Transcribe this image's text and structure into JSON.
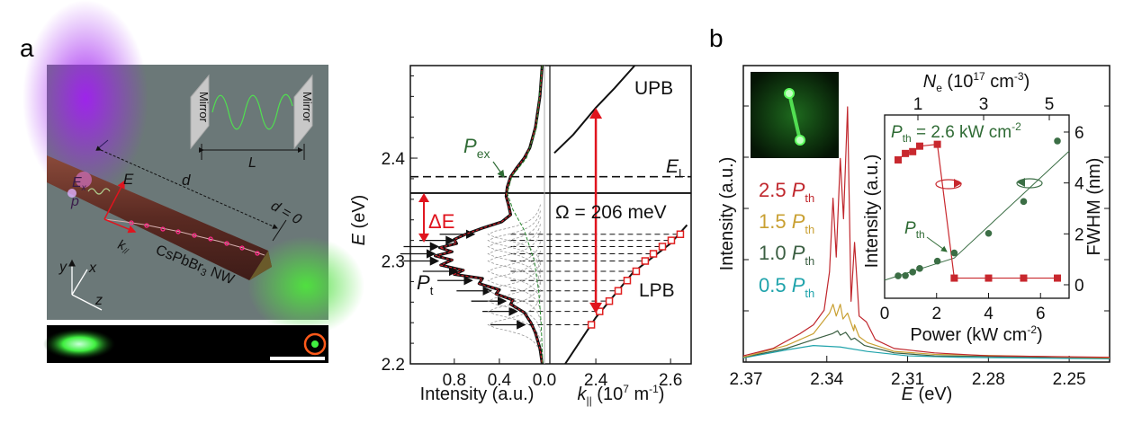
{
  "panel_labels": {
    "a": "a",
    "b": "b"
  },
  "colors": {
    "red": "#d0202a",
    "green_text": "#2f6b35",
    "lpb_points": "#e02020",
    "s25": "#c0272d",
    "s15": "#c9a032",
    "s10": "#3b5f42",
    "s05": "#1fa3ab",
    "fwhm": "#3b6e45",
    "intensity": "#c8282e"
  },
  "schematic": {
    "mirror_left": "Mirror",
    "mirror_right": "Mirror",
    "L": "L",
    "d": "d",
    "d0": "d = 0",
    "E": "E",
    "Ex": "E",
    "Ex_sub": "x",
    "p": "p",
    "k": "k",
    "k_sub": "//",
    "nw": "CsPbBr",
    "nw_sub": "3",
    "nw_suffix": " NW",
    "axes": {
      "x": "x",
      "y": "y",
      "z": "z"
    }
  },
  "chart_data": [
    {
      "type": "line",
      "ylabel": "E",
      "ylabel_unit": " (eV)",
      "ylim": [
        2.2,
        2.49
      ],
      "y_ticks": [
        "2.2",
        "2.3",
        "2.4"
      ],
      "left": {
        "xlabel": "Intensity (a.u.)",
        "xlim": [
          1.19,
          0
        ],
        "x_ticks": [
          "0.8",
          "0.4",
          "0.0"
        ],
        "spectrum": [
          [
            2.49,
            0.02
          ],
          [
            2.46,
            0.04
          ],
          [
            2.43,
            0.08
          ],
          [
            2.41,
            0.13
          ],
          [
            2.4,
            0.18
          ],
          [
            2.39,
            0.25
          ],
          [
            2.382,
            0.3
          ],
          [
            2.372,
            0.33
          ],
          [
            2.363,
            0.34
          ],
          [
            2.355,
            0.32
          ],
          [
            2.345,
            0.3
          ],
          [
            2.338,
            0.38
          ],
          [
            2.332,
            0.55
          ],
          [
            2.326,
            0.7
          ],
          [
            2.321,
            0.8
          ],
          [
            2.317,
            0.78
          ],
          [
            2.313,
            0.93
          ],
          [
            2.309,
            0.82
          ],
          [
            2.305,
            0.97
          ],
          [
            2.301,
            0.82
          ],
          [
            2.296,
            0.92
          ],
          [
            2.291,
            0.72
          ],
          [
            2.287,
            0.8
          ],
          [
            2.283,
            0.55
          ],
          [
            2.278,
            0.58
          ],
          [
            2.272,
            0.4
          ],
          [
            2.268,
            0.43
          ],
          [
            2.262,
            0.28
          ],
          [
            2.258,
            0.3
          ],
          [
            2.25,
            0.18
          ],
          [
            2.24,
            0.12
          ],
          [
            2.23,
            0.08
          ],
          [
            2.215,
            0.04
          ],
          [
            2.2,
            0.02
          ]
        ],
        "p_ex_fit": [
          [
            2.49,
            0.02
          ],
          [
            2.43,
            0.07
          ],
          [
            2.4,
            0.16
          ],
          [
            2.382,
            0.29
          ],
          [
            2.366,
            0.33
          ],
          [
            2.35,
            0.28
          ],
          [
            2.33,
            0.18
          ],
          [
            2.3,
            0.09
          ],
          [
            2.27,
            0.05
          ],
          [
            2.24,
            0.03
          ],
          [
            2.2,
            0.015
          ]
        ],
        "mode_arrow_tips": [
          0.15,
          0.22,
          0.32,
          0.45,
          0.62,
          0.75,
          0.92,
          0.95,
          0.92,
          0.78,
          0.6
        ],
        "labels": {
          "p_ex": "P",
          "p_ex_sub": "ex",
          "p_t": "P",
          "p_t_sub": "t",
          "delta_e": "ΔE"
        }
      },
      "right": {
        "xlabel": "k",
        "xlabel_sub": "||",
        "xlabel_unit": " (10",
        "xlabel_exp": "7",
        "xlabel_unit2": " m",
        "xlabel_exp2": "-1",
        "xlabel_close": ")",
        "xlim": [
          2.277,
          2.655
        ],
        "x_ticks": [
          "2.4",
          "2.6"
        ],
        "lpb": [
          [
            2.318,
            2.2
          ],
          [
            2.4,
            2.245
          ],
          [
            2.5,
            2.289
          ],
          [
            2.6,
            2.317
          ],
          [
            2.644,
            2.335
          ]
        ],
        "upb": [
          [
            2.289,
            2.405
          ],
          [
            2.34,
            2.423
          ],
          [
            2.4,
            2.449
          ],
          [
            2.45,
            2.468
          ],
          [
            2.504,
            2.49
          ]
        ],
        "modes": [
          [
            2.388,
            2.238
          ],
          [
            2.41,
            2.251
          ],
          [
            2.436,
            2.261
          ],
          [
            2.46,
            2.271
          ],
          [
            2.484,
            2.281
          ],
          [
            2.508,
            2.29
          ],
          [
            2.532,
            2.3
          ],
          [
            2.554,
            2.307
          ],
          [
            2.578,
            2.314
          ],
          [
            2.602,
            2.32
          ],
          [
            2.626,
            2.326
          ]
        ],
        "labels": {
          "upb": "UPB",
          "lpb": "LPB",
          "e_l": "E",
          "e_l_sub": "L",
          "rabi": "Ω = 206 meV"
        }
      },
      "hlines": {
        "e_l": 2.382,
        "exciton": 2.366
      },
      "rabi_arrow": {
        "k": 2.4,
        "from": 2.249,
        "to": 2.449
      },
      "delta_e_arrow": {
        "intensity": 1.07,
        "from": 2.366,
        "to": 2.318
      }
    },
    {
      "type": "line",
      "xlabel": "E",
      "xlabel_unit": " (eV)",
      "ylabel": "Intensity (a.u.)",
      "xlim": [
        2.371,
        2.235
      ],
      "ylim": [
        0,
        1
      ],
      "x_ticks": [
        "2.37",
        "2.34",
        "2.31",
        "2.28",
        "2.25"
      ],
      "series": [
        {
          "name": "2.5",
          "name_sym": "P",
          "name_sub": "th",
          "color_key": "s25",
          "points": [
            [
              2.371,
              0.015
            ],
            [
              2.36,
              0.04
            ],
            [
              2.35,
              0.09
            ],
            [
              2.345,
              0.12
            ],
            [
              2.341,
              0.17
            ],
            [
              2.339,
              0.3
            ],
            [
              2.3377,
              0.55
            ],
            [
              2.3365,
              0.35
            ],
            [
              2.335,
              0.685
            ],
            [
              2.3338,
              0.48
            ],
            [
              2.3323,
              0.86
            ],
            [
              2.331,
              0.2
            ],
            [
              2.3297,
              0.4
            ],
            [
              2.328,
              0.15
            ],
            [
              2.3253,
              0.13
            ],
            [
              2.322,
              0.07
            ],
            [
              2.315,
              0.04
            ],
            [
              2.3,
              0.025
            ],
            [
              2.28,
              0.015
            ],
            [
              2.235,
              0.01
            ]
          ]
        },
        {
          "name": "1.5",
          "name_sym": "P",
          "name_sub": "th",
          "color_key": "s15",
          "points": [
            [
              2.371,
              0.01
            ],
            [
              2.355,
              0.05
            ],
            [
              2.345,
              0.09
            ],
            [
              2.339,
              0.16
            ],
            [
              2.3377,
              0.19
            ],
            [
              2.3365,
              0.15
            ],
            [
              2.335,
              0.19
            ],
            [
              2.334,
              0.14
            ],
            [
              2.3323,
              0.16
            ],
            [
              2.33,
              0.1
            ],
            [
              2.3297,
              0.12
            ],
            [
              2.328,
              0.08
            ],
            [
              2.325,
              0.06
            ],
            [
              2.315,
              0.03
            ],
            [
              2.3,
              0.02
            ],
            [
              2.235,
              0.008
            ]
          ]
        },
        {
          "name": "1.0",
          "name_sym": "P",
          "name_sub": "th",
          "color_key": "s10",
          "points": [
            [
              2.371,
              0.01
            ],
            [
              2.355,
              0.04
            ],
            [
              2.345,
              0.07
            ],
            [
              2.338,
              0.09
            ],
            [
              2.336,
              0.1
            ],
            [
              2.335,
              0.085
            ],
            [
              2.333,
              0.095
            ],
            [
              2.331,
              0.07
            ],
            [
              2.3297,
              0.075
            ],
            [
              2.326,
              0.05
            ],
            [
              2.315,
              0.025
            ],
            [
              2.3,
              0.015
            ],
            [
              2.235,
              0.008
            ]
          ]
        },
        {
          "name": "0.5",
          "name_sym": "P",
          "name_sub": "th",
          "color_key": "s05",
          "points": [
            [
              2.371,
              0.008
            ],
            [
              2.355,
              0.035
            ],
            [
              2.345,
              0.05
            ],
            [
              2.335,
              0.045
            ],
            [
              2.325,
              0.03
            ],
            [
              2.31,
              0.015
            ],
            [
              2.29,
              0.01
            ],
            [
              2.235,
              0.005
            ]
          ]
        }
      ]
    },
    {
      "type": "scatter",
      "xlabel": "Power (kW cm",
      "xlabel_exp": "-2",
      "xlabel_close": ")",
      "ylabel_left": "Intensity (a.u.)",
      "ylabel_right": "FWHM (nm)",
      "top_xlabel": "N",
      "top_xlabel_sub": "e",
      "top_xlabel_unit": " (10",
      "top_xlabel_exp": "17",
      "top_xlabel_unit2": " cm",
      "top_xlabel_exp2": "-3",
      "top_xlabel_close": ")",
      "xlim": [
        0,
        7.1
      ],
      "ylim_right": [
        -0.53,
        6.67
      ],
      "x_ticks": [
        "0",
        "2",
        "4",
        "6"
      ],
      "y_ticks_right": [
        "0",
        "2",
        "4",
        "6"
      ],
      "top_ticks": [
        "1",
        "3",
        "5"
      ],
      "fwhm": {
        "x": [
          0.52,
          0.8,
          1.08,
          1.35,
          2.03,
          2.68,
          4.0,
          5.35,
          6.65
        ],
        "y": [
          0.35,
          0.36,
          0.5,
          0.64,
          0.93,
          1.25,
          2.02,
          3.27,
          5.65
        ]
      },
      "fwhm_fit": [
        [
          0,
          0.18
        ],
        [
          2.68,
          1.05
        ],
        [
          7.1,
          5.25
        ]
      ],
      "intensity": {
        "x": [
          0.52,
          0.8,
          1.08,
          1.35,
          2.03,
          2.68,
          4.0,
          5.35,
          6.65
        ],
        "y": [
          0.755,
          0.79,
          0.8,
          0.83,
          0.84,
          0.11,
          0.11,
          0.11,
          0.11
        ]
      },
      "annotation_threshold": {
        "sym": "P",
        "sub": "th",
        "value": " = 2.6 kW cm",
        "exp": "-2"
      },
      "annotation_pth": {
        "sym": "P",
        "sub": "th"
      }
    }
  ]
}
